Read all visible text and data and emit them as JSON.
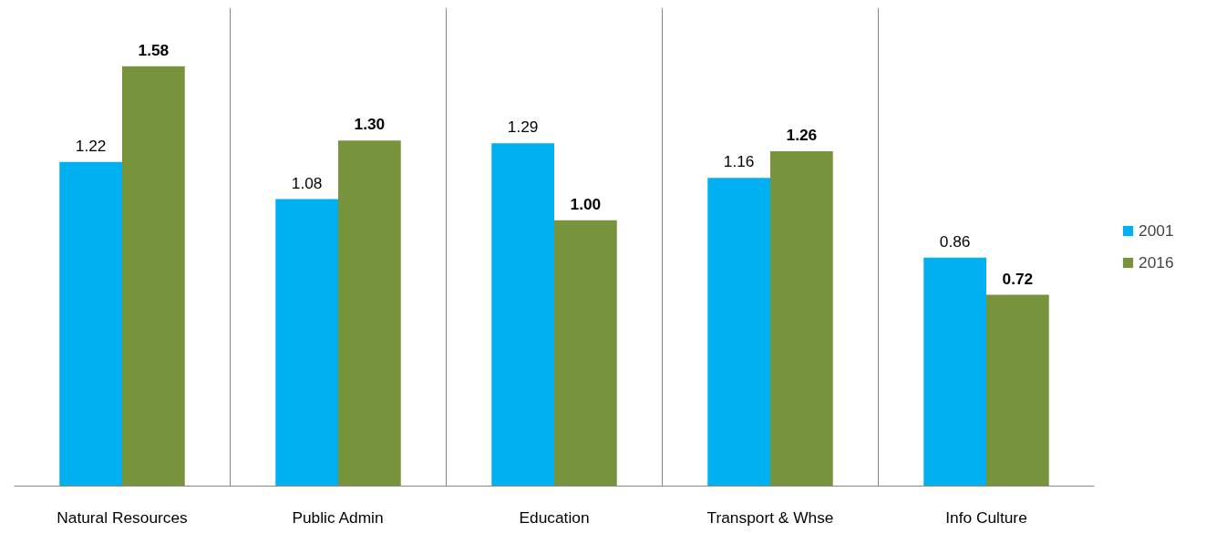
{
  "chart_data": {
    "type": "bar",
    "categories": [
      "Natural Resources",
      "Public Admin",
      "Education",
      "Transport & Whse",
      "Info Culture"
    ],
    "series": [
      {
        "name": "2001",
        "color": "#00b0f0",
        "values": [
          1.22,
          1.08,
          1.29,
          1.16,
          0.86
        ],
        "value_labels": [
          "1.22",
          "1.08",
          "1.29",
          "1.16",
          "0.86"
        ]
      },
      {
        "name": "2016",
        "color": "#77933c",
        "values": [
          1.58,
          1.3,
          1.0,
          1.26,
          0.72
        ],
        "value_labels": [
          "1.58",
          "1.30",
          "1.00",
          "1.26",
          "0.72"
        ]
      }
    ],
    "ylim": [
      0,
      1.8
    ],
    "tick_labels": "x",
    "grid": "x",
    "legend": "right"
  }
}
